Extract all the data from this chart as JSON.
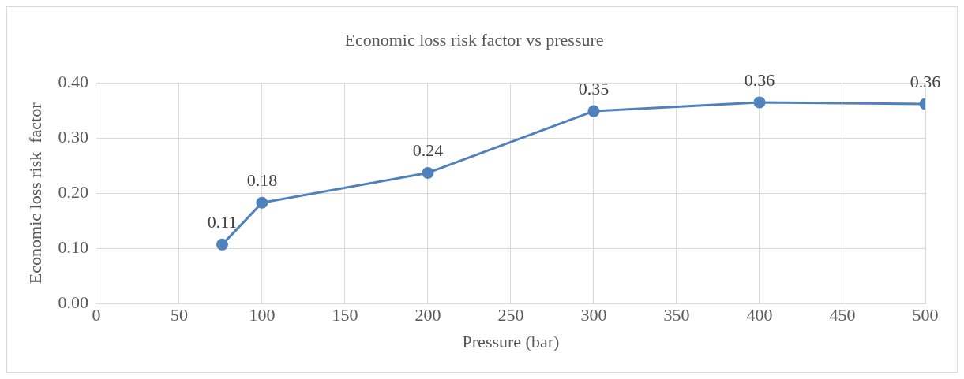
{
  "chart_data": {
    "type": "line",
    "title": "Economic loss risk factor vs pressure",
    "xlabel": "Pressure (bar)",
    "ylabel": "Economic loss risk  factor",
    "x": [
      76,
      100,
      200,
      300,
      400,
      500
    ],
    "series": [
      {
        "color": "#4f81bd",
        "values": [
          0.107,
          0.183,
          0.237,
          0.349,
          0.365,
          0.362
        ],
        "value_labels": [
          "0.11",
          "0.18",
          "0.24",
          "0.35",
          "0.36",
          "0.36"
        ]
      }
    ],
    "xlim": [
      0,
      500
    ],
    "xticks": [
      0,
      50,
      100,
      150,
      200,
      250,
      300,
      350,
      400,
      450,
      500
    ],
    "ylim": [
      0,
      0.4
    ],
    "yticks": [
      {
        "value": 0,
        "label": "0.00"
      },
      {
        "value": 0.1,
        "label": "0.10"
      },
      {
        "value": 0.2,
        "label": "0.20"
      },
      {
        "value": 0.3,
        "label": "0.30"
      },
      {
        "value": 0.4,
        "label": "0.40"
      }
    ],
    "grid": true,
    "legend": false,
    "marker": "circle",
    "line_style": "solid"
  }
}
